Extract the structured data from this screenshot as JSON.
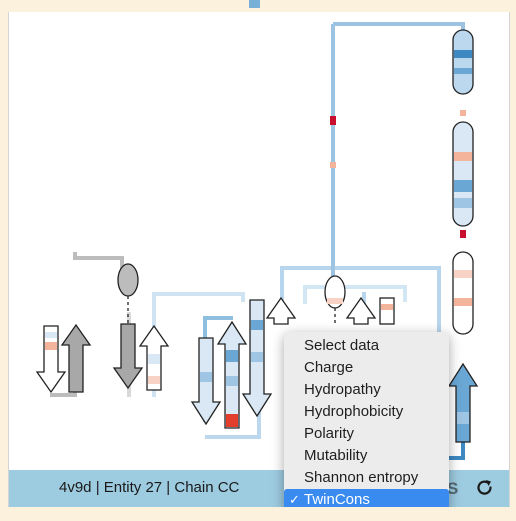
{
  "footer": {
    "label": "4v9d | Entity 27 | Chain CC",
    "partial_text": "S"
  },
  "dropdown": {
    "options": [
      "Select data",
      "Charge",
      "Hydropathy",
      "Hydrophobicity",
      "Polarity",
      "Mutability",
      "Shannon entropy",
      "TwinCons"
    ],
    "selected": "TwinCons",
    "check_mark": "✓"
  },
  "colors": {
    "high_conservation": "#2f7fb8",
    "mid_conservation": "#9ec5e3",
    "low_conservation": "#f4b49c",
    "variable": "#e33d2c",
    "selection": "#3a8bf0",
    "footer_bg": "#9dcbe0"
  },
  "icons": {
    "refresh": "refresh-icon"
  }
}
